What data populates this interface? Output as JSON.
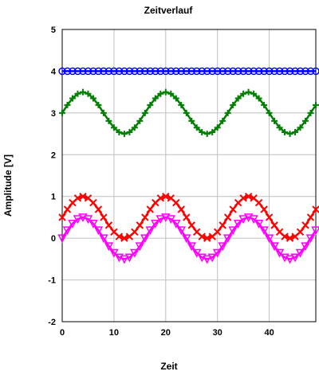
{
  "chart_data": {
    "type": "line",
    "title": "Zeitverlauf",
    "xlabel": "Zeit",
    "ylabel": "Amplitude [V]",
    "xlim": [
      0,
      49
    ],
    "ylim": [
      -2,
      5
    ],
    "xticks": [
      0,
      10,
      20,
      30,
      40
    ],
    "yticks": [
      -2,
      -1,
      0,
      1,
      2,
      3,
      4,
      5
    ],
    "grid": true,
    "x": [
      0,
      1,
      2,
      3,
      4,
      5,
      6,
      7,
      8,
      9,
      10,
      11,
      12,
      13,
      14,
      15,
      16,
      17,
      18,
      19,
      20,
      21,
      22,
      23,
      24,
      25,
      26,
      27,
      28,
      29,
      30,
      31,
      32,
      33,
      34,
      35,
      36,
      37,
      38,
      39,
      40,
      41,
      42,
      43,
      44,
      45,
      46,
      47,
      48,
      49
    ],
    "series": [
      {
        "color": "#0000ff",
        "marker": "circle",
        "values": [
          4,
          4,
          4,
          4,
          4,
          4,
          4,
          4,
          4,
          4,
          4,
          4,
          4,
          4,
          4,
          4,
          4,
          4,
          4,
          4,
          4,
          4,
          4,
          4,
          4,
          4,
          4,
          4,
          4,
          4,
          4,
          4,
          4,
          4,
          4,
          4,
          4,
          4,
          4,
          4,
          4,
          4,
          4,
          4,
          4,
          4,
          4,
          4,
          4,
          4
        ]
      },
      {
        "color": "#008000",
        "marker": "plus",
        "values": [
          3.0,
          3.19,
          3.35,
          3.46,
          3.5,
          3.46,
          3.35,
          3.19,
          3.0,
          2.81,
          2.65,
          2.54,
          2.5,
          2.54,
          2.65,
          2.81,
          3.0,
          3.19,
          3.35,
          3.46,
          3.5,
          3.46,
          3.35,
          3.19,
          3.0,
          2.81,
          2.65,
          2.54,
          2.5,
          2.54,
          2.65,
          2.81,
          3.0,
          3.19,
          3.35,
          3.46,
          3.5,
          3.46,
          3.35,
          3.19,
          3.0,
          2.81,
          2.65,
          2.54,
          2.5,
          2.54,
          2.65,
          2.81,
          3.0,
          3.19
        ]
      },
      {
        "color": "#ff0000",
        "marker": "x",
        "values": [
          0.5,
          0.69,
          0.85,
          0.96,
          1.0,
          0.96,
          0.85,
          0.69,
          0.5,
          0.31,
          0.15,
          0.04,
          0.0,
          0.04,
          0.15,
          0.31,
          0.5,
          0.69,
          0.85,
          0.96,
          1.0,
          0.96,
          0.85,
          0.69,
          0.5,
          0.31,
          0.15,
          0.04,
          0.0,
          0.04,
          0.15,
          0.31,
          0.5,
          0.69,
          0.85,
          0.96,
          1.0,
          0.96,
          0.85,
          0.69,
          0.5,
          0.31,
          0.15,
          0.04,
          0.0,
          0.04,
          0.15,
          0.31,
          0.5,
          0.69
        ]
      },
      {
        "color": "#ff00ff",
        "marker": "triangle-down",
        "values": [
          0.0,
          0.19,
          0.35,
          0.46,
          0.5,
          0.46,
          0.35,
          0.19,
          0.0,
          -0.19,
          -0.35,
          -0.46,
          -0.5,
          -0.46,
          -0.35,
          -0.19,
          0.0,
          0.19,
          0.35,
          0.46,
          0.5,
          0.46,
          0.35,
          0.19,
          0.0,
          -0.19,
          -0.35,
          -0.46,
          -0.5,
          -0.46,
          -0.35,
          -0.19,
          0.0,
          0.19,
          0.35,
          0.46,
          0.5,
          0.46,
          0.35,
          0.19,
          0.0,
          -0.19,
          -0.35,
          -0.46,
          -0.5,
          -0.46,
          -0.35,
          -0.19,
          0.0,
          0.19
        ]
      }
    ]
  }
}
